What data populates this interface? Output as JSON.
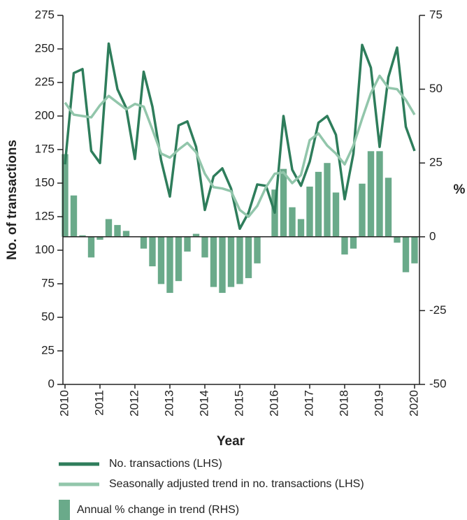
{
  "chart_data": {
    "type": "line",
    "x": [
      2010,
      2010.25,
      2010.5,
      2010.75,
      2011,
      2011.25,
      2011.5,
      2011.75,
      2012,
      2012.25,
      2012.5,
      2012.75,
      2013,
      2013.25,
      2013.5,
      2013.75,
      2014,
      2014.25,
      2014.5,
      2014.75,
      2015,
      2015.25,
      2015.5,
      2015.75,
      2016,
      2016.25,
      2016.5,
      2016.75,
      2017,
      2017.25,
      2017.5,
      2017.75,
      2018,
      2018.25,
      2018.5,
      2018.75,
      2019,
      2019.25,
      2019.5,
      2019.75,
      2020
    ],
    "series": [
      {
        "name": "No. transactions (LHS)",
        "type": "line",
        "color": "#2e7d5b",
        "values": [
          164,
          232,
          235,
          174,
          165,
          254,
          220,
          206,
          168,
          233,
          207,
          167,
          140,
          193,
          196,
          177,
          130,
          155,
          161,
          146,
          116,
          128,
          149,
          148,
          128,
          200,
          160,
          148,
          166,
          195,
          200,
          186,
          138,
          172,
          253,
          236,
          177,
          229,
          251,
          192,
          174
        ]
      },
      {
        "name": "Seasonally adjusted trend in no. transactions (LHS)",
        "type": "line",
        "color": "#92c6ab",
        "values": [
          210,
          201,
          200,
          199,
          208,
          215,
          210,
          205,
          209,
          207,
          190,
          172,
          169,
          175,
          180,
          173,
          157,
          147,
          146,
          144,
          130,
          125,
          133,
          147,
          157,
          158,
          150,
          156,
          182,
          187,
          178,
          172,
          164,
          178,
          198,
          217,
          230,
          221,
          220,
          212,
          201
        ]
      },
      {
        "name": "Annual % change in trend (RHS)",
        "type": "bar",
        "axis": "y2",
        "color": "#6aaa8a",
        "values": [
          28,
          14,
          0.5,
          -7,
          -1,
          6,
          4,
          2,
          0,
          -4,
          -10,
          -16,
          -19,
          -15,
          -5,
          1,
          -7,
          -17,
          -19,
          -17,
          -16,
          -14,
          -9,
          0,
          16,
          23,
          10,
          6,
          17,
          22,
          25,
          15,
          -6,
          -4,
          18,
          29,
          29,
          20,
          -2,
          -12,
          -9
        ]
      }
    ],
    "xlim": [
      2009.94,
      2020.14
    ],
    "xticks": [
      2010,
      2011,
      2012,
      2013,
      2014,
      2015,
      2016,
      2017,
      2018,
      2019,
      2020
    ],
    "ylim": [
      0,
      275
    ],
    "yticks": [
      0,
      25,
      50,
      75,
      100,
      125,
      150,
      175,
      200,
      225,
      250,
      275
    ],
    "y2lim": [
      -50,
      75
    ],
    "y2ticks": [
      -50,
      -25,
      0,
      25,
      50,
      75
    ],
    "x_label": "Year",
    "y_label": "No. of transactions",
    "y2_label": "%"
  }
}
